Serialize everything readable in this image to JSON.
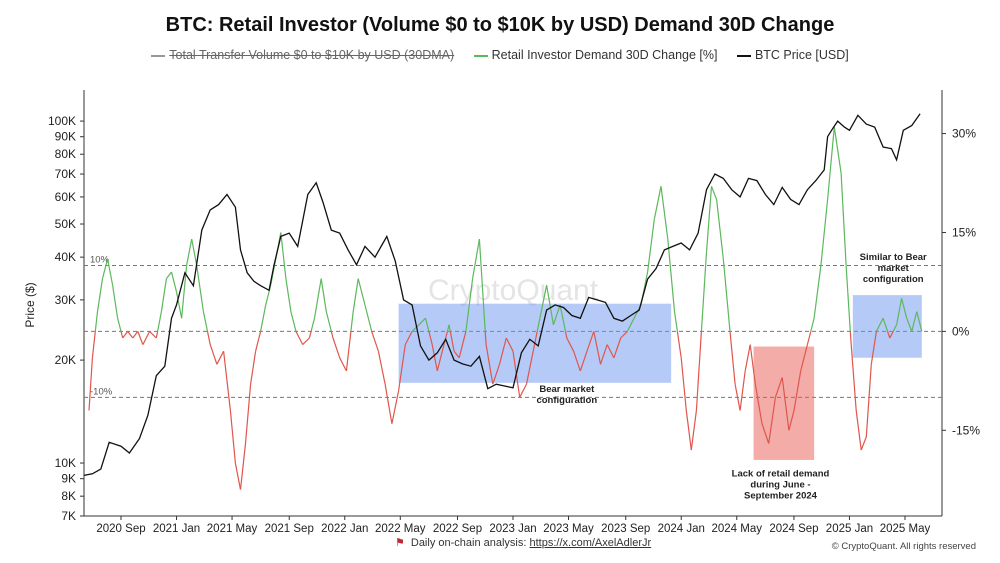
{
  "chart_data": {
    "type": "line",
    "title": "BTC: Retail Investor (Volume $0 to $10K by USD) Demand 30D Change",
    "legend": [
      {
        "name": "Total Transfer Volume  $0 to $10K by USD (30DMA)",
        "color": "#999999",
        "hidden": true
      },
      {
        "name": "Retail Investor Demand 30D Change [%]",
        "color": "#5cb85c"
      },
      {
        "name": "BTC Price [USD]",
        "color": "#111111"
      }
    ],
    "ylabel_left": "Price ($)",
    "y_left_scale": "log",
    "y_left_range": [
      7000,
      120000
    ],
    "y_left_ticks": [
      {
        "v": 7000,
        "label": "7K"
      },
      {
        "v": 8000,
        "label": "8K"
      },
      {
        "v": 9000,
        "label": "9K"
      },
      {
        "v": 10000,
        "label": "10K"
      },
      {
        "v": 20000,
        "label": "20K"
      },
      {
        "v": 30000,
        "label": "30K"
      },
      {
        "v": 40000,
        "label": "40K"
      },
      {
        "v": 50000,
        "label": "50K"
      },
      {
        "v": 60000,
        "label": "60K"
      },
      {
        "v": 70000,
        "label": "70K"
      },
      {
        "v": 80000,
        "label": "80K"
      },
      {
        "v": 90000,
        "label": "90K"
      },
      {
        "v": 100000,
        "label": "100K"
      }
    ],
    "y_right_range": [
      -28,
      36
    ],
    "y_right_ticks": [
      {
        "v": 30,
        "label": "30%"
      },
      {
        "v": 15,
        "label": "15%"
      },
      {
        "v": 0,
        "label": "0%"
      },
      {
        "v": -15,
        "label": "-15%"
      }
    ],
    "ref_lines": [
      {
        "v": 10,
        "label": "10%"
      },
      {
        "v": 0,
        "label": ""
      },
      {
        "v": -10,
        "label": "-10%"
      }
    ],
    "x_range": [
      2020.45,
      2025.55
    ],
    "x_ticks": [
      {
        "x": 2020.67,
        "label": "2020 Sep"
      },
      {
        "x": 2021.0,
        "label": "2021 Jan"
      },
      {
        "x": 2021.33,
        "label": "2021 May"
      },
      {
        "x": 2021.67,
        "label": "2021 Sep"
      },
      {
        "x": 2022.0,
        "label": "2022 Jan"
      },
      {
        "x": 2022.33,
        "label": "2022 May"
      },
      {
        "x": 2022.67,
        "label": "2022 Sep"
      },
      {
        "x": 2023.0,
        "label": "2023 Jan"
      },
      {
        "x": 2023.33,
        "label": "2023 May"
      },
      {
        "x": 2023.67,
        "label": "2023 Sep"
      },
      {
        "x": 2024.0,
        "label": "2024 Jan"
      },
      {
        "x": 2024.33,
        "label": "2024 May"
      },
      {
        "x": 2024.67,
        "label": "2024 Sep"
      },
      {
        "x": 2025.0,
        "label": "2025 Jan"
      },
      {
        "x": 2025.33,
        "label": "2025 May"
      }
    ],
    "btc_price": [
      [
        2020.45,
        9200
      ],
      [
        2020.5,
        9300
      ],
      [
        2020.55,
        9600
      ],
      [
        2020.6,
        11500
      ],
      [
        2020.67,
        11200
      ],
      [
        2020.72,
        10700
      ],
      [
        2020.78,
        11800
      ],
      [
        2020.83,
        13800
      ],
      [
        2020.88,
        18000
      ],
      [
        2020.93,
        19200
      ],
      [
        2020.97,
        26500
      ],
      [
        2021.0,
        29000
      ],
      [
        2021.05,
        36000
      ],
      [
        2021.1,
        33000
      ],
      [
        2021.15,
        48000
      ],
      [
        2021.2,
        55000
      ],
      [
        2021.25,
        57000
      ],
      [
        2021.3,
        61000
      ],
      [
        2021.35,
        56000
      ],
      [
        2021.38,
        42000
      ],
      [
        2021.42,
        36000
      ],
      [
        2021.46,
        34000
      ],
      [
        2021.5,
        33000
      ],
      [
        2021.55,
        32000
      ],
      [
        2021.58,
        38000
      ],
      [
        2021.62,
        46000
      ],
      [
        2021.67,
        47000
      ],
      [
        2021.72,
        43000
      ],
      [
        2021.78,
        61000
      ],
      [
        2021.83,
        66000
      ],
      [
        2021.87,
        58000
      ],
      [
        2021.92,
        48000
      ],
      [
        2021.97,
        47000
      ],
      [
        2022.02,
        42000
      ],
      [
        2022.07,
        38000
      ],
      [
        2022.12,
        43000
      ],
      [
        2022.18,
        40000
      ],
      [
        2022.25,
        46000
      ],
      [
        2022.3,
        39000
      ],
      [
        2022.35,
        30000
      ],
      [
        2022.4,
        29000
      ],
      [
        2022.45,
        22000
      ],
      [
        2022.5,
        20000
      ],
      [
        2022.55,
        21000
      ],
      [
        2022.6,
        23000
      ],
      [
        2022.65,
        20000
      ],
      [
        2022.7,
        19500
      ],
      [
        2022.75,
        19200
      ],
      [
        2022.8,
        20500
      ],
      [
        2022.85,
        16500
      ],
      [
        2022.9,
        17000
      ],
      [
        2022.95,
        16800
      ],
      [
        2023.0,
        16600
      ],
      [
        2023.05,
        21000
      ],
      [
        2023.1,
        23000
      ],
      [
        2023.15,
        22000
      ],
      [
        2023.2,
        28000
      ],
      [
        2023.25,
        29000
      ],
      [
        2023.3,
        28500
      ],
      [
        2023.35,
        27000
      ],
      [
        2023.4,
        26500
      ],
      [
        2023.45,
        30500
      ],
      [
        2023.5,
        30000
      ],
      [
        2023.55,
        29500
      ],
      [
        2023.6,
        26500
      ],
      [
        2023.65,
        26000
      ],
      [
        2023.7,
        27000
      ],
      [
        2023.75,
        28000
      ],
      [
        2023.8,
        34500
      ],
      [
        2023.85,
        37000
      ],
      [
        2023.9,
        42000
      ],
      [
        2023.95,
        43000
      ],
      [
        2024.0,
        44000
      ],
      [
        2024.05,
        42000
      ],
      [
        2024.1,
        47000
      ],
      [
        2024.15,
        63000
      ],
      [
        2024.2,
        70000
      ],
      [
        2024.25,
        68000
      ],
      [
        2024.3,
        63000
      ],
      [
        2024.35,
        60000
      ],
      [
        2024.4,
        68000
      ],
      [
        2024.45,
        67000
      ],
      [
        2024.5,
        61000
      ],
      [
        2024.55,
        57000
      ],
      [
        2024.6,
        64000
      ],
      [
        2024.65,
        59000
      ],
      [
        2024.7,
        57000
      ],
      [
        2024.75,
        63000
      ],
      [
        2024.8,
        67000
      ],
      [
        2024.85,
        72000
      ],
      [
        2024.87,
        90000
      ],
      [
        2024.9,
        95000
      ],
      [
        2024.93,
        100000
      ],
      [
        2024.97,
        96000
      ],
      [
        2025.0,
        94000
      ],
      [
        2025.05,
        104000
      ],
      [
        2025.1,
        98000
      ],
      [
        2025.15,
        96000
      ],
      [
        2025.2,
        84000
      ],
      [
        2025.25,
        83000
      ],
      [
        2025.28,
        77000
      ],
      [
        2025.32,
        94000
      ],
      [
        2025.37,
        97000
      ],
      [
        2025.42,
        105000
      ]
    ],
    "demand_30d_change_pct": [
      [
        2020.48,
        -12
      ],
      [
        2020.5,
        -4
      ],
      [
        2020.53,
        3
      ],
      [
        2020.56,
        8
      ],
      [
        2020.59,
        11
      ],
      [
        2020.62,
        7
      ],
      [
        2020.65,
        2
      ],
      [
        2020.68,
        -1
      ],
      [
        2020.71,
        0
      ],
      [
        2020.74,
        -1
      ],
      [
        2020.77,
        0
      ],
      [
        2020.8,
        -2
      ],
      [
        2020.84,
        0
      ],
      [
        2020.88,
        -1
      ],
      [
        2020.91,
        3
      ],
      [
        2020.94,
        8
      ],
      [
        2020.97,
        9
      ],
      [
        2021.0,
        6
      ],
      [
        2021.03,
        2
      ],
      [
        2021.06,
        10
      ],
      [
        2021.09,
        14
      ],
      [
        2021.12,
        10
      ],
      [
        2021.16,
        3
      ],
      [
        2021.2,
        -2
      ],
      [
        2021.24,
        -5
      ],
      [
        2021.28,
        -3
      ],
      [
        2021.32,
        -12
      ],
      [
        2021.35,
        -20
      ],
      [
        2021.38,
        -24
      ],
      [
        2021.41,
        -17
      ],
      [
        2021.44,
        -8
      ],
      [
        2021.47,
        -3
      ],
      [
        2021.5,
        0
      ],
      [
        2021.53,
        4
      ],
      [
        2021.56,
        7
      ],
      [
        2021.59,
        11
      ],
      [
        2021.62,
        15
      ],
      [
        2021.65,
        8
      ],
      [
        2021.68,
        3
      ],
      [
        2021.71,
        0
      ],
      [
        2021.75,
        -2
      ],
      [
        2021.79,
        -1
      ],
      [
        2021.82,
        2
      ],
      [
        2021.86,
        8
      ],
      [
        2021.89,
        3
      ],
      [
        2021.93,
        -1
      ],
      [
        2021.97,
        -4
      ],
      [
        2022.01,
        -6
      ],
      [
        2022.05,
        3
      ],
      [
        2022.08,
        8
      ],
      [
        2022.12,
        4
      ],
      [
        2022.16,
        0
      ],
      [
        2022.2,
        -3
      ],
      [
        2022.24,
        -8
      ],
      [
        2022.28,
        -14
      ],
      [
        2022.32,
        -9
      ],
      [
        2022.36,
        -2
      ],
      [
        2022.4,
        0
      ],
      [
        2022.44,
        1
      ],
      [
        2022.48,
        2
      ],
      [
        2022.52,
        -2
      ],
      [
        2022.55,
        -6
      ],
      [
        2022.58,
        -3
      ],
      [
        2022.62,
        1
      ],
      [
        2022.65,
        -3
      ],
      [
        2022.68,
        -4
      ],
      [
        2022.72,
        0
      ],
      [
        2022.76,
        8
      ],
      [
        2022.8,
        14
      ],
      [
        2022.84,
        -2
      ],
      [
        2022.88,
        -8
      ],
      [
        2022.92,
        -5
      ],
      [
        2022.96,
        -1
      ],
      [
        2023.0,
        -3
      ],
      [
        2023.04,
        -10
      ],
      [
        2023.08,
        -8
      ],
      [
        2023.12,
        -3
      ],
      [
        2023.16,
        2
      ],
      [
        2023.2,
        7
      ],
      [
        2023.24,
        1
      ],
      [
        2023.28,
        4
      ],
      [
        2023.32,
        -1
      ],
      [
        2023.36,
        -3
      ],
      [
        2023.4,
        -6
      ],
      [
        2023.44,
        -3
      ],
      [
        2023.48,
        0
      ],
      [
        2023.52,
        -5
      ],
      [
        2023.56,
        -2
      ],
      [
        2023.6,
        -4
      ],
      [
        2023.64,
        -1
      ],
      [
        2023.68,
        0
      ],
      [
        2023.72,
        2
      ],
      [
        2023.76,
        4
      ],
      [
        2023.8,
        9
      ],
      [
        2023.84,
        17
      ],
      [
        2023.88,
        22
      ],
      [
        2023.92,
        14
      ],
      [
        2023.96,
        3
      ],
      [
        2024.0,
        -4
      ],
      [
        2024.03,
        -12
      ],
      [
        2024.06,
        -18
      ],
      [
        2024.09,
        -12
      ],
      [
        2024.12,
        0
      ],
      [
        2024.15,
        12
      ],
      [
        2024.18,
        22
      ],
      [
        2024.21,
        20
      ],
      [
        2024.25,
        11
      ],
      [
        2024.29,
        0
      ],
      [
        2024.32,
        -8
      ],
      [
        2024.35,
        -12
      ],
      [
        2024.38,
        -6
      ],
      [
        2024.41,
        -2
      ],
      [
        2024.44,
        -8
      ],
      [
        2024.48,
        -14
      ],
      [
        2024.52,
        -17
      ],
      [
        2024.56,
        -10
      ],
      [
        2024.6,
        -7
      ],
      [
        2024.64,
        -15
      ],
      [
        2024.67,
        -12
      ],
      [
        2024.71,
        -6
      ],
      [
        2024.75,
        -2
      ],
      [
        2024.79,
        2
      ],
      [
        2024.83,
        10
      ],
      [
        2024.87,
        20
      ],
      [
        2024.91,
        31
      ],
      [
        2024.95,
        24
      ],
      [
        2024.98,
        10
      ],
      [
        2025.01,
        -2
      ],
      [
        2025.04,
        -12
      ],
      [
        2025.07,
        -18
      ],
      [
        2025.1,
        -16
      ],
      [
        2025.13,
        -5
      ],
      [
        2025.16,
        0
      ],
      [
        2025.2,
        2
      ],
      [
        2025.24,
        -1
      ],
      [
        2025.28,
        1
      ],
      [
        2025.31,
        5
      ],
      [
        2025.34,
        2
      ],
      [
        2025.37,
        0
      ],
      [
        2025.4,
        3
      ],
      [
        2025.43,
        0
      ]
    ],
    "annotations": [
      {
        "text": [
          "Bear market",
          "configuration"
        ],
        "x": 2023.32,
        "pct": -9.2,
        "color": "#222222",
        "box": {
          "x0": 2022.32,
          "x1": 2023.94,
          "p0": 4.2,
          "p1": -7.8,
          "color": "#6b96ef"
        }
      },
      {
        "text": [
          "Lack of retail demand",
          "during June -",
          "September 2024"
        ],
        "x": 2024.59,
        "pct": -22,
        "color": "#222222",
        "box": {
          "x0": 2024.43,
          "x1": 2024.79,
          "p0": -2.3,
          "p1": -19.5,
          "color": "#e85a4f"
        }
      },
      {
        "text": [
          "Similar to Bear",
          "market",
          "configuration"
        ],
        "x": 2025.26,
        "pct": 10.8,
        "color": "#222222",
        "box": {
          "x0": 2025.02,
          "x1": 2025.43,
          "p0": 5.5,
          "p1": -4.0,
          "color": "#6b96ef"
        }
      }
    ],
    "watermark": "CryptoQuant",
    "grid": false
  },
  "footer": {
    "flag_icon": "red-flag-icon",
    "link_prefix": "Daily on-chain analysis:",
    "link_url": "https://x.com/AxelAdlerJr",
    "copyright": "© CryptoQuant. All rights reserved"
  }
}
